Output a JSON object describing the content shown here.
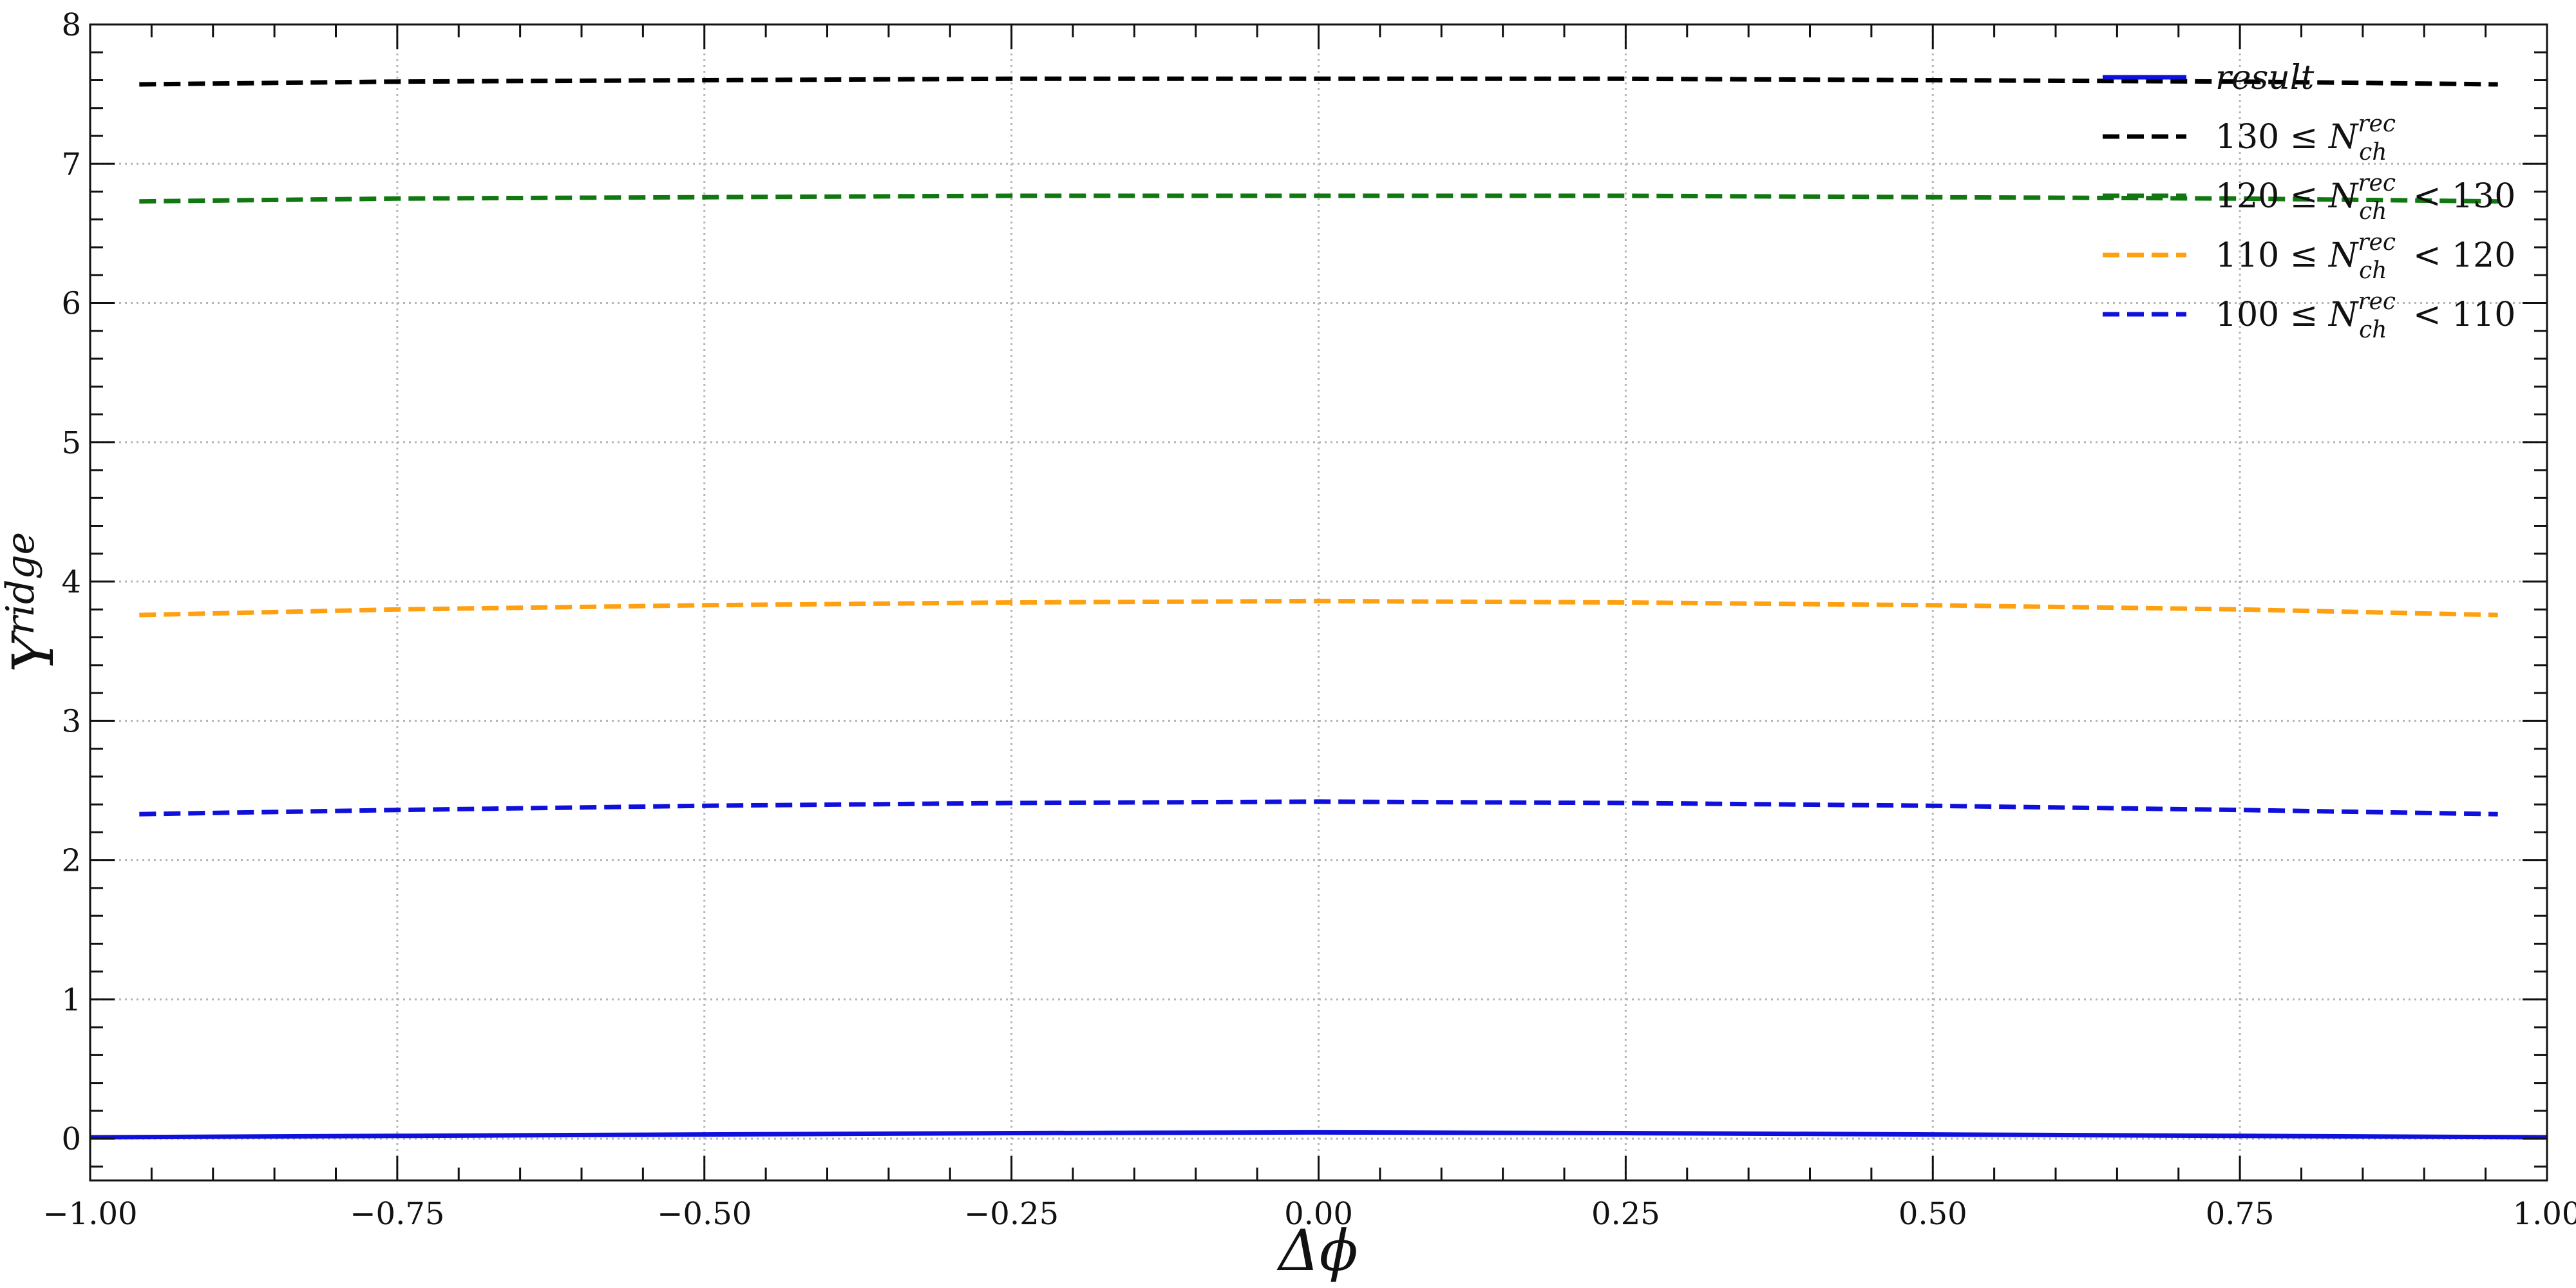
{
  "chart_data": {
    "type": "line",
    "title": "",
    "xlabel": "Δϕ",
    "ylabel": "Y",
    "ylabel_superscript": "ridge",
    "xlim": [
      -1.0,
      1.0
    ],
    "ylim": [
      -0.3,
      8.0
    ],
    "grid": true,
    "legend_position": "top-right",
    "x_ticks": [
      "−1.00",
      "−0.75",
      "−0.50",
      "−0.25",
      "0.00",
      "0.25",
      "0.50",
      "0.75",
      "1.00"
    ],
    "y_ticks": [
      "0",
      "1",
      "2",
      "3",
      "4",
      "5",
      "6",
      "7",
      "8"
    ],
    "x": [
      -0.96,
      -0.75,
      -0.5,
      -0.25,
      0.0,
      0.25,
      0.5,
      0.75,
      0.96
    ],
    "series": [
      {
        "name": "result",
        "name_parts": {
          "lead": "",
          "var": "result",
          "tail": ""
        },
        "style": "solid",
        "color": "#1010dd",
        "x": [
          -1.0,
          -0.75,
          -0.5,
          -0.25,
          0.0,
          0.25,
          0.5,
          0.75,
          1.0
        ],
        "values": [
          0.01,
          0.02,
          0.03,
          0.04,
          0.045,
          0.04,
          0.03,
          0.02,
          0.01
        ]
      },
      {
        "name": "130 ≤ N_ch^rec",
        "name_parts": {
          "lead": "130 ≤ ",
          "var": "N",
          "sub": "ch",
          "sup": "rec",
          "tail": ""
        },
        "style": "dashed",
        "color": "#000000",
        "values": [
          7.57,
          7.59,
          7.6,
          7.61,
          7.61,
          7.61,
          7.6,
          7.59,
          7.57
        ]
      },
      {
        "name": "120 ≤ N_ch^rec < 130",
        "name_parts": {
          "lead": "120 ≤ ",
          "var": "N",
          "sub": "ch",
          "sup": "rec",
          "tail": " < 130"
        },
        "style": "dashed",
        "color": "#117711",
        "values": [
          6.73,
          6.75,
          6.76,
          6.77,
          6.77,
          6.77,
          6.76,
          6.75,
          6.73
        ]
      },
      {
        "name": "110 ≤ N_ch^rec < 120",
        "name_parts": {
          "lead": "110 ≤ ",
          "var": "N",
          "sub": "ch",
          "sup": "rec",
          "tail": " < 120"
        },
        "style": "dashed",
        "color": "#ffa010",
        "values": [
          3.76,
          3.8,
          3.83,
          3.85,
          3.86,
          3.85,
          3.83,
          3.8,
          3.76
        ]
      },
      {
        "name": "100 ≤ N_ch^rec < 110",
        "name_parts": {
          "lead": "100 ≤ ",
          "var": "N",
          "sub": "ch",
          "sup": "rec",
          "tail": " < 110"
        },
        "style": "dashed",
        "color": "#1010dd",
        "values": [
          2.33,
          2.36,
          2.39,
          2.41,
          2.42,
          2.41,
          2.39,
          2.36,
          2.33
        ]
      }
    ]
  }
}
